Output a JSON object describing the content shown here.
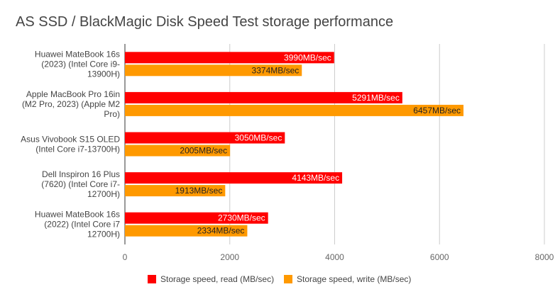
{
  "chart_data": {
    "type": "bar",
    "orientation": "horizontal",
    "title": "AS SSD / BlackMagic Disk Speed Test storage performance",
    "categories": [
      [
        "Huawei MateBook 16s",
        "(2023) (Intel Core i9-",
        "13900H)"
      ],
      [
        "Apple MacBook Pro 16in",
        "(M2 Pro, 2023) (Apple M2",
        "Pro)"
      ],
      [
        "Asus Vivobook S15 OLED",
        "(Intel Core i7-13700H)"
      ],
      [
        "Dell Inspiron 16 Plus",
        "(7620) (Intel Core i7-",
        "12700H)"
      ],
      [
        "Huawei MateBook 16s",
        "(2022) (Intel Core i7",
        "12700H)"
      ]
    ],
    "series": [
      {
        "name": "Storage speed, read (MB/sec)",
        "color": "#ff0000",
        "label_color": "#ffffff",
        "values": [
          3990,
          5291,
          3050,
          4143,
          2730
        ],
        "labels": [
          "3990MB/sec",
          "5291MB/sec",
          "3050MB/sec",
          "4143MB/sec",
          "2730MB/sec"
        ]
      },
      {
        "name": "Storage speed, write (MB/sec)",
        "color": "#ff9900",
        "label_color": "#222222",
        "values": [
          3374,
          6457,
          2005,
          1913,
          2334
        ],
        "labels": [
          "3374MB/sec",
          "6457MB/sec",
          "2005MB/sec",
          "1913MB/sec",
          "2334MB/sec"
        ]
      }
    ],
    "xlim": [
      0,
      8000
    ],
    "xticks": [
      0,
      2000,
      4000,
      6000,
      8000
    ],
    "xtick_labels": [
      "0",
      "2000",
      "4000",
      "6000",
      "8000"
    ],
    "grid": true,
    "legend_position": "bottom"
  }
}
